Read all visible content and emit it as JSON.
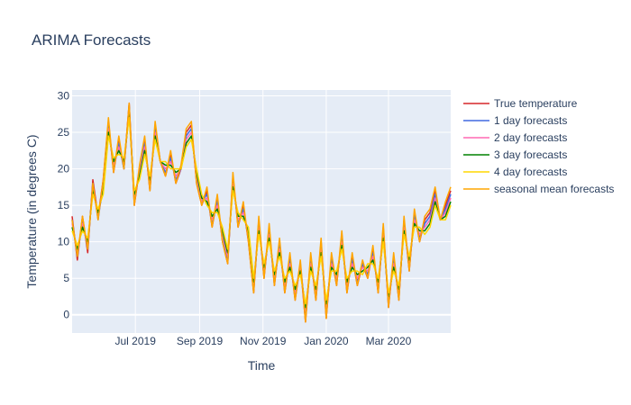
{
  "chart_data": {
    "type": "line",
    "title": "ARIMA Forecasts",
    "xlabel": "Time",
    "ylabel": "Temperature (in degrees C)",
    "x_tick_labels": [
      "Jul 2019",
      "Sep 2019",
      "Nov 2019",
      "Jan 2020",
      "Mar 2020"
    ],
    "y_tick_labels": [
      "0",
      "5",
      "10",
      "15",
      "20",
      "25",
      "30"
    ],
    "ylim": [
      -2.5,
      30.8
    ],
    "xlim": [
      "2019-05-01",
      "2020-04-30"
    ],
    "grid": true,
    "legend_position": "right",
    "x": [
      "2019-05-01",
      "2019-05-06",
      "2019-05-11",
      "2019-05-16",
      "2019-05-21",
      "2019-05-26",
      "2019-05-31",
      "2019-06-05",
      "2019-06-10",
      "2019-06-15",
      "2019-06-20",
      "2019-06-25",
      "2019-06-30",
      "2019-07-05",
      "2019-07-10",
      "2019-07-15",
      "2019-07-20",
      "2019-07-25",
      "2019-07-30",
      "2019-08-04",
      "2019-08-09",
      "2019-08-14",
      "2019-08-19",
      "2019-08-24",
      "2019-08-29",
      "2019-09-03",
      "2019-09-08",
      "2019-09-13",
      "2019-09-18",
      "2019-09-23",
      "2019-09-28",
      "2019-10-03",
      "2019-10-08",
      "2019-10-13",
      "2019-10-18",
      "2019-10-23",
      "2019-10-28",
      "2019-11-02",
      "2019-11-07",
      "2019-11-12",
      "2019-11-17",
      "2019-11-22",
      "2019-11-27",
      "2019-12-02",
      "2019-12-07",
      "2019-12-12",
      "2019-12-17",
      "2019-12-22",
      "2019-12-27",
      "2020-01-01",
      "2020-01-06",
      "2020-01-11",
      "2020-01-16",
      "2020-01-21",
      "2020-01-26",
      "2020-01-31",
      "2020-02-05",
      "2020-02-10",
      "2020-02-15",
      "2020-02-20",
      "2020-02-25",
      "2020-03-01",
      "2020-03-06",
      "2020-03-11",
      "2020-03-16",
      "2020-03-21",
      "2020-03-26",
      "2020-03-31",
      "2020-04-05",
      "2020-04-10",
      "2020-04-15",
      "2020-04-20",
      "2020-04-25",
      "2020-04-30"
    ],
    "series": [
      {
        "name": "True temperature",
        "color": "#d62728",
        "values": [
          13.5,
          7.5,
          13.5,
          8.5,
          18.5,
          13.5,
          18.5,
          26.5,
          19.5,
          24,
          20,
          29,
          15,
          20,
          24,
          17,
          26,
          21,
          19,
          22,
          18,
          20,
          25,
          26,
          18,
          15,
          17,
          12,
          16,
          10,
          7,
          19,
          12,
          15,
          10,
          3,
          13,
          5,
          12,
          4,
          10,
          3,
          8,
          2,
          7,
          -1,
          8,
          2,
          10,
          -0.5,
          8,
          4,
          11,
          3,
          8,
          4,
          7,
          5,
          9,
          3,
          12,
          1,
          8,
          2,
          13,
          6,
          14,
          10,
          13,
          14,
          17,
          13,
          15,
          17
        ]
      },
      {
        "name": "1 day forecasts",
        "color": "#4169e1",
        "values": [
          13,
          8,
          13,
          9,
          18,
          13,
          18,
          26,
          20,
          23.5,
          20,
          28.5,
          15.5,
          20,
          23.5,
          17.5,
          25.5,
          21,
          19.5,
          21.5,
          18.5,
          20,
          24.5,
          25.5,
          18.5,
          15.5,
          16.5,
          12.5,
          15.5,
          10.5,
          7.5,
          18.5,
          12.5,
          14.5,
          10.5,
          3.5,
          12.5,
          5.5,
          11.5,
          4.5,
          9.5,
          3.5,
          7.5,
          2.5,
          7,
          0,
          7.5,
          2.5,
          9.5,
          0.5,
          7.5,
          4.5,
          10.5,
          3.5,
          7.5,
          4.5,
          7,
          5.5,
          8.5,
          3.5,
          11.5,
          1.5,
          7.5,
          2.5,
          12.5,
          6.5,
          13.5,
          10.5,
          12.5,
          13.5,
          16.5,
          13,
          14.5,
          16.5
        ]
      },
      {
        "name": "2 day forecasts",
        "color": "#ff69b4",
        "values": [
          12.5,
          8.5,
          12.5,
          9.5,
          17.5,
          13.5,
          17.5,
          25.5,
          20.5,
          23,
          20.5,
          28,
          16,
          19.5,
          23,
          18,
          25,
          21,
          20,
          21,
          19,
          20,
          24,
          25,
          19,
          15.5,
          16,
          13,
          15,
          11,
          8,
          18,
          13,
          14,
          11,
          4,
          12,
          6,
          11,
          5,
          9,
          4,
          7,
          3,
          6.5,
          0.5,
          7,
          3,
          9,
          1,
          7,
          5,
          10,
          4,
          7,
          5,
          6.5,
          6,
          8,
          4,
          11,
          2,
          7,
          3,
          12,
          7,
          13,
          11,
          12,
          13,
          16,
          13,
          14,
          16
        ]
      },
      {
        "name": "3 day forecasts",
        "color": "#008000",
        "values": [
          12,
          9,
          12,
          10,
          17,
          14,
          17,
          25,
          21,
          22.5,
          21,
          27.5,
          16.5,
          19,
          22.5,
          18.5,
          24.5,
          21,
          20.5,
          20.5,
          19.5,
          20,
          23.5,
          24.5,
          19.5,
          16,
          15.5,
          13.5,
          14.5,
          11.5,
          8.5,
          17.5,
          13.5,
          13.5,
          11.5,
          4.5,
          11.5,
          6.5,
          10.5,
          5.5,
          8.5,
          4.5,
          6.5,
          3.5,
          6,
          1,
          6.5,
          3.5,
          8.5,
          1.5,
          6.5,
          5.5,
          9.5,
          4.5,
          6.5,
          5.5,
          6,
          6.5,
          7.5,
          4.5,
          10.5,
          2.5,
          6.5,
          3.5,
          11.5,
          7.5,
          12.5,
          11.5,
          11.5,
          12.5,
          15.5,
          13,
          13.5,
          15.5
        ]
      },
      {
        "name": "4 day forecasts",
        "color": "#ffd700",
        "values": [
          11.5,
          9.5,
          11.5,
          10.5,
          16.5,
          14.5,
          16.5,
          24.5,
          21.5,
          22,
          21.5,
          27,
          17,
          18.5,
          22,
          19,
          24,
          21,
          21,
          20,
          20,
          20,
          23,
          24,
          20,
          16.5,
          15,
          14,
          14,
          12,
          9,
          17,
          14,
          13,
          12,
          5,
          11,
          7,
          10,
          6,
          8,
          5,
          6,
          4,
          5.5,
          1.5,
          6,
          4,
          8,
          2,
          6,
          6,
          9,
          5,
          6,
          6,
          5.5,
          7,
          7,
          5,
          10,
          3,
          6,
          4,
          11,
          8,
          12,
          12,
          11,
          12,
          15,
          13,
          13,
          15
        ]
      },
      {
        "name": "seasonal mean forecasts",
        "color": "#ffa500",
        "values": [
          13,
          8,
          13.5,
          9,
          18,
          13,
          18.5,
          27,
          19.5,
          24.5,
          20,
          29,
          15,
          20.5,
          24.5,
          17,
          26.5,
          21,
          19,
          22.5,
          18,
          20.5,
          25.5,
          26.5,
          18,
          15,
          17.5,
          12,
          16.5,
          10,
          7,
          19.5,
          12,
          15.5,
          10,
          3,
          13.5,
          5,
          12.5,
          4,
          10.5,
          3,
          8.5,
          2,
          7.5,
          -1,
          8.5,
          2,
          10.5,
          -0.5,
          8.5,
          4,
          11.5,
          3,
          8.5,
          4,
          7.5,
          5,
          9.5,
          3,
          12.5,
          1,
          8.5,
          2,
          13.5,
          6,
          14.5,
          10,
          13.5,
          14.5,
          17.5,
          13,
          15.5,
          17.5
        ]
      }
    ]
  }
}
